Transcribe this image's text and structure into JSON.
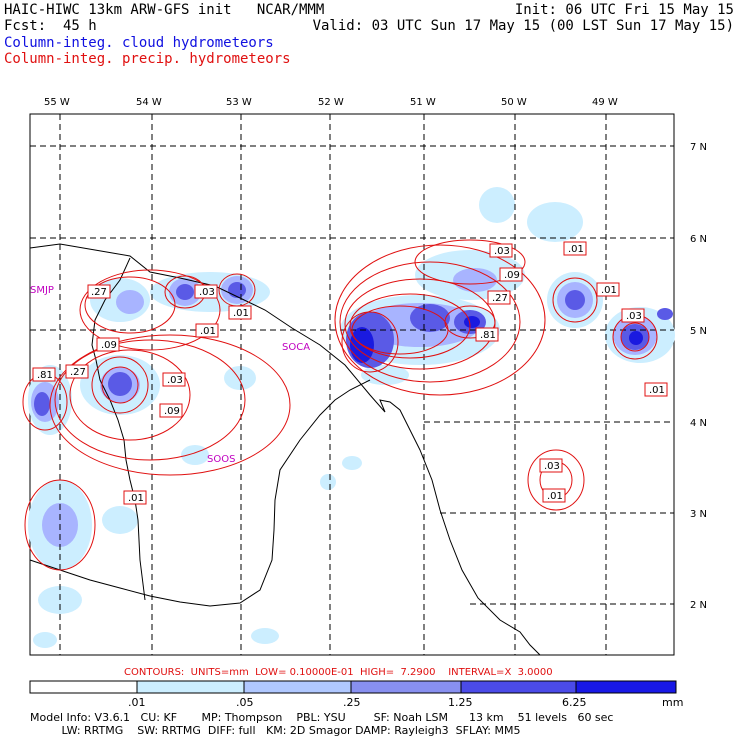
{
  "header": {
    "line1_left": "HAIC-HIWC 13km ARW-GFS init   NCAR/MMM",
    "line1_right": "Init: 06 UTC Fri 15 May 15",
    "line2_left": "Fcst:  45 h",
    "line2_right": "Valid: 03 UTC Sun 17 May 15 (00 LST Sun 17 May 15)",
    "field1": "Column-integ. cloud hydrometeors",
    "field2": "Column-integ. precip. hydrometeors"
  },
  "colors": {
    "cloud_field": "#1010e0",
    "precip_field": "#e01010",
    "station": "#c000c0"
  },
  "map": {
    "lon_labels": [
      "55 W",
      "54 W",
      "53 W",
      "52 W",
      "51 W",
      "50 W",
      "49 W"
    ],
    "lat_labels": [
      "7 N",
      "6 N",
      "5 N",
      "4 N",
      "3 N",
      "2 N"
    ],
    "stations": [
      "SMJP",
      "SOCA",
      "SOOS"
    ],
    "contour_labels": [
      ".27",
      ".01",
      ".03",
      ".01",
      ".09",
      ".81",
      ".27",
      ".03",
      ".09",
      ".01",
      ".03",
      ".01",
      ".09",
      ".27",
      ".81",
      ".01",
      ".03",
      ".01",
      ".03",
      ".01"
    ]
  },
  "contours_line": {
    "units_label": "CONTOURS:  UNITS=mm",
    "low_label": "LOW= 0.10000E-01",
    "high_label": "HIGH=  7.2900",
    "interval_label": "INTERVAL=X  3.0000"
  },
  "colorbar": {
    "ticks": [
      ".01",
      ".05",
      ".25",
      "1.25",
      "6.25"
    ],
    "unit": "mm",
    "colors": [
      "#ffffff",
      "#cceeff",
      "#b0c8ff",
      "#8890f0",
      "#5555e8",
      "#2a2ae8",
      "#0000e6"
    ]
  },
  "footer": {
    "line1": "Model Info: V3.6.1   CU: KF       MP: Thompson    PBL: YSU        SF: Noah LSM      13 km    51 levels   60 sec",
    "line2": "         LW: RRTMG    SW: RRTMG  DIFF: full   KM: 2D Smagor DAMP: Rayleigh3  SFLAY: MM5"
  }
}
